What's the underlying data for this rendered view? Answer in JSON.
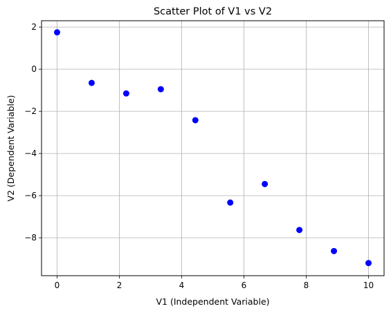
{
  "chart_data": {
    "type": "scatter",
    "title": "Scatter Plot of V1 vs V2",
    "xlabel": "V1 (Independent Variable)",
    "ylabel": "V2 (Dependent Variable)",
    "xlim": [
      -0.5,
      10.5
    ],
    "ylim": [
      -9.8,
      2.3
    ],
    "xticks": [
      0,
      2,
      4,
      6,
      8,
      10
    ],
    "yticks": [
      2,
      0,
      -2,
      -4,
      -6,
      -8
    ],
    "xtick_labels": [
      "0",
      "2",
      "4",
      "6",
      "8",
      "10"
    ],
    "ytick_labels": [
      "2",
      "0",
      "−2",
      "−4",
      "−6",
      "−8"
    ],
    "grid": true,
    "marker_color": "#0000ff",
    "x": [
      0,
      1.11,
      2.22,
      3.33,
      4.44,
      5.56,
      6.67,
      7.78,
      8.89,
      10
    ],
    "y": [
      1.75,
      -0.65,
      -1.15,
      -0.95,
      -2.42,
      -6.33,
      -5.45,
      -7.63,
      -8.63,
      -9.2
    ]
  }
}
